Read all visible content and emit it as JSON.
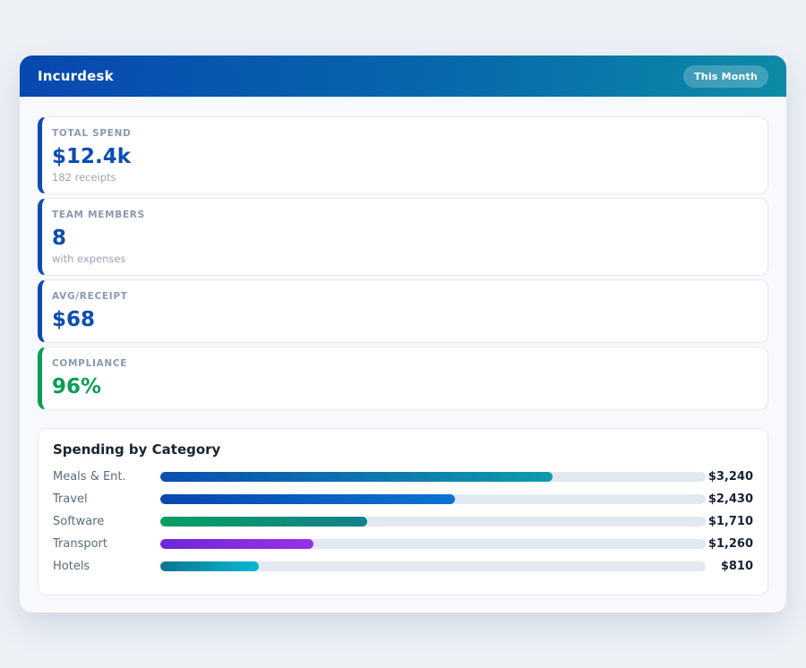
{
  "header": {
    "app_name": "Incurdesk",
    "period_badge": "This Month",
    "gradient": [
      "#0847b0",
      "#0d8ba6"
    ]
  },
  "stats": [
    {
      "label": "TOTAL SPEND",
      "value": "$12.4k",
      "sub": "182 receipts",
      "accent": "#0b4db3"
    },
    {
      "label": "TEAM MEMBERS",
      "value": "8",
      "sub": "with expenses",
      "accent": "#0b4db3"
    },
    {
      "label": "AVG/RECEIPT",
      "value": "$68",
      "sub": "",
      "accent": "#0b4db3"
    },
    {
      "label": "COMPLIANCE",
      "value": "96%",
      "sub": "",
      "accent": "#0a9e54"
    }
  ],
  "chart_data": {
    "type": "bar",
    "orientation": "horizontal",
    "title": "Spending by Category",
    "categories": [
      "Meals & Ent.",
      "Travel",
      "Software",
      "Transport",
      "Hotels"
    ],
    "values": [
      3240,
      2430,
      1710,
      1260,
      810
    ],
    "value_labels": [
      "$3,240",
      "$2,430",
      "$1,710",
      "$1,260",
      "$810"
    ],
    "xlim": [
      0,
      4500
    ],
    "grid": false,
    "legend": false,
    "track_color": "#e3e9f0",
    "bar_gradients": [
      [
        "#0b4db1",
        "#0f9bab"
      ],
      [
        "#0a47ae",
        "#0b74d4"
      ],
      [
        "#059f61",
        "#15808c"
      ],
      [
        "#6d28d9",
        "#9a2fe8"
      ],
      [
        "#0e7490",
        "#08b8d4"
      ]
    ]
  }
}
